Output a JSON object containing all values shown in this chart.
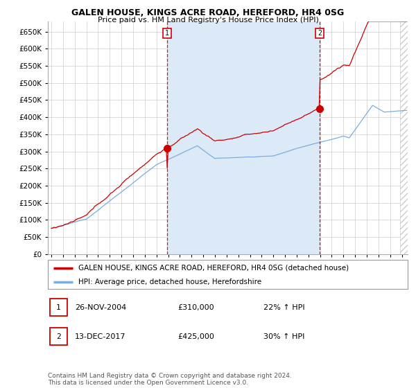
{
  "title1": "GALEN HOUSE, KINGS ACRE ROAD, HEREFORD, HR4 0SG",
  "title2": "Price paid vs. HM Land Registry's House Price Index (HPI)",
  "ylim": [
    0,
    680000
  ],
  "yticks": [
    0,
    50000,
    100000,
    150000,
    200000,
    250000,
    300000,
    350000,
    400000,
    450000,
    500000,
    550000,
    600000,
    650000
  ],
  "legend_line1": "GALEN HOUSE, KINGS ACRE ROAD, HEREFORD, HR4 0SG (detached house)",
  "legend_line2": "HPI: Average price, detached house, Herefordshire",
  "annotation1_date": "26-NOV-2004",
  "annotation1_price": "£310,000",
  "annotation1_hpi": "22% ↑ HPI",
  "annotation1_year": 2004.9,
  "annotation1_value": 310000,
  "annotation2_date": "13-DEC-2017",
  "annotation2_price": "£425,000",
  "annotation2_hpi": "30% ↑ HPI",
  "annotation2_year": 2017.95,
  "annotation2_value": 425000,
  "footer": "Contains HM Land Registry data © Crown copyright and database right 2024.\nThis data is licensed under the Open Government Licence v3.0.",
  "line_color_red": "#cc0000",
  "line_color_blue": "#7aade0",
  "shade_color": "#dce9f7",
  "background_color": "#ffffff",
  "grid_color": "#cccccc",
  "xmin": 1995,
  "xmax": 2025
}
